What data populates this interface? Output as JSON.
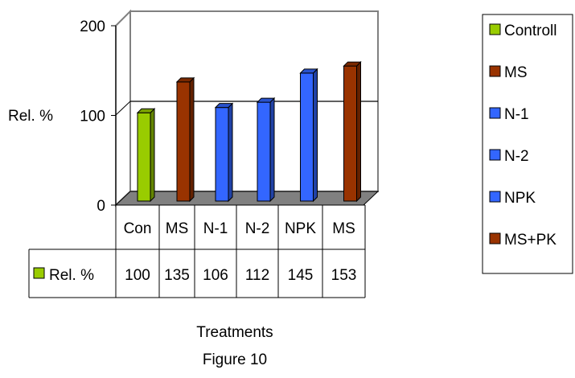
{
  "chart_data": {
    "type": "bar",
    "categories": [
      "Con",
      "MS",
      "N-1",
      "N-2",
      "NPK",
      "MS"
    ],
    "values": [
      100,
      135,
      106,
      112,
      145,
      153
    ],
    "colors": [
      "#99cc00",
      "#993300",
      "#3366ff",
      "#3366ff",
      "#3366ff",
      "#993300"
    ],
    "ylabel": "Rel. %",
    "xlabel": "Treatments",
    "caption": "Figure 10",
    "ylim": [
      0,
      200
    ],
    "yticks": [
      0,
      100,
      200
    ],
    "gridlines": [
      100
    ],
    "table_row_label": "Rel. %",
    "legend_placement": "right",
    "legend": [
      {
        "label": "Controll",
        "color": "#99cc00"
      },
      {
        "label": "MS",
        "color": "#993300"
      },
      {
        "label": "N-1",
        "color": "#3366ff"
      },
      {
        "label": "N-2",
        "color": "#3366ff"
      },
      {
        "label": "NPK",
        "color": "#3366ff"
      },
      {
        "label": "MS+PK",
        "color": "#993300"
      }
    ]
  }
}
